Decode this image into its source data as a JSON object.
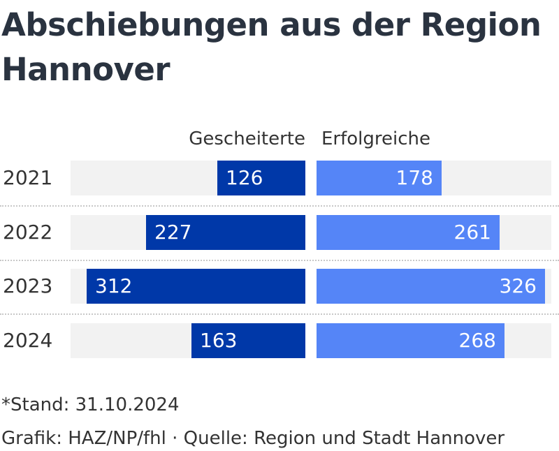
{
  "chart_data": {
    "type": "bar",
    "orientation": "horizontal",
    "layout": "butterfly",
    "title": "Abschiebungen aus der Region Hannover",
    "categories": [
      "2021",
      "2022",
      "2023",
      "2024"
    ],
    "series": [
      {
        "name": "Gescheiterte",
        "color": "#0038a8",
        "values": [
          126,
          227,
          312,
          163
        ]
      },
      {
        "name": "Erfolgreiche",
        "color": "#5585f7",
        "values": [
          178,
          261,
          326,
          268
        ]
      }
    ],
    "xlim": [
      0,
      335
    ],
    "legend": "column headers above bars",
    "grid": false,
    "footnote": "*Stand: 31.10.2024",
    "source": "Grafik: HAZ/NP/fhl · Quelle: Region und Stadt Hannover"
  }
}
